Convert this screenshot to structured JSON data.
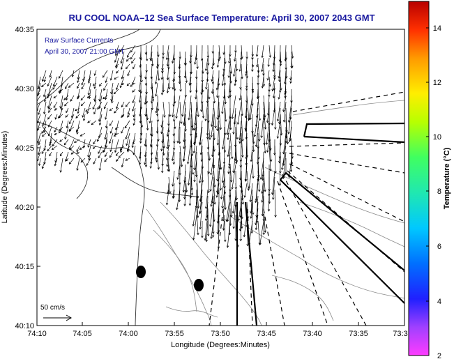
{
  "title": "RU COOL  NOAA–12  Sea Surface Temperature:  April 30, 2007 2043 GMT",
  "legend": {
    "line1": "Raw Surface Currents",
    "line2": "April 30, 2007 21:00 GMT"
  },
  "x_axis": {
    "label": "Longitude (Degrees:Minutes)",
    "ticks": [
      "74:10",
      "74:05",
      "74:00",
      "73:55",
      "73:50",
      "73:45",
      "73:40",
      "73:35",
      "73:3"
    ]
  },
  "y_axis": {
    "label": "Latitude (Degrees:Minutes)",
    "ticks": [
      "40:35",
      "40:30",
      "40:25",
      "40:20",
      "40:15",
      "40:10"
    ]
  },
  "colorbar": {
    "label": "Temperature (°C)",
    "ticks": [
      "14",
      "12",
      "10",
      "8",
      "6",
      "4",
      "2"
    ]
  },
  "scale_arrow": {
    "label": "50 cm/s"
  },
  "colors": {
    "title_text": "#1a1aa0",
    "legend_text": "#1a1aa0",
    "frame": "#000000",
    "contour": "#888888"
  }
}
